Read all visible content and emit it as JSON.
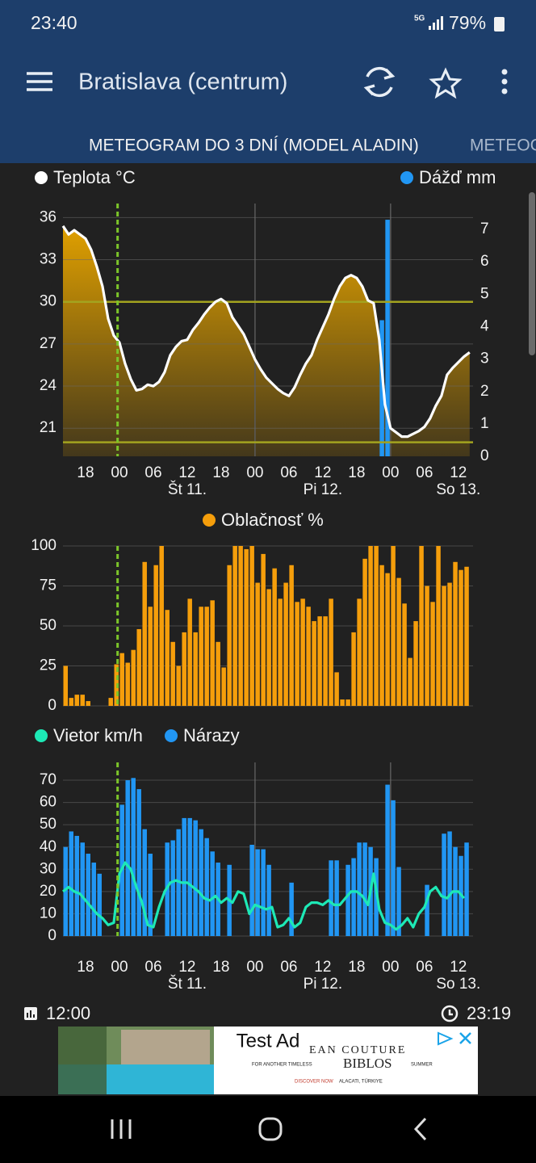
{
  "status_bar": {
    "time": "23:40",
    "network": "5G",
    "battery": "79%"
  },
  "app_bar": {
    "title": "Bratislava (centrum)"
  },
  "tabs": [
    "METEOGRAM DO 3 DNÍ (MODEL ALADIN)",
    "METEOG"
  ],
  "chart_data": [
    {
      "type": "line",
      "series": [
        {
          "name": "Teplota °C",
          "color": "#ffffff",
          "area_color": "#e0a000",
          "x": [
            14,
            15,
            16,
            17,
            18,
            19,
            20,
            21,
            22,
            23,
            24,
            25,
            26,
            27,
            28,
            29,
            30,
            31,
            32,
            33,
            34,
            35,
            36,
            37,
            38,
            39,
            40,
            41,
            42,
            43,
            44,
            45,
            46,
            47,
            48,
            49,
            50,
            51,
            52,
            53,
            54,
            55,
            56,
            57,
            58,
            59,
            60,
            61,
            62,
            63,
            64,
            65,
            66,
            67,
            68,
            69,
            70,
            71,
            72,
            73,
            74,
            75,
            76,
            77,
            78,
            79,
            80,
            81,
            82,
            83,
            84,
            85,
            86
          ],
          "values": [
            35.4,
            34.8,
            35.1,
            34.8,
            34.5,
            33.7,
            32.5,
            31.1,
            28.8,
            27.6,
            27.1,
            25.6,
            24.5,
            23.7,
            23.8,
            24.1,
            24.0,
            24.3,
            25.0,
            26.2,
            26.8,
            27.2,
            27.3,
            28.0,
            28.5,
            29.1,
            29.6,
            30.0,
            30.2,
            29.9,
            28.9,
            28.3,
            27.7,
            26.8,
            25.9,
            25.2,
            24.6,
            24.2,
            23.8,
            23.5,
            23.3,
            23.9,
            24.8,
            25.6,
            26.2,
            27.3,
            28.2,
            29.1,
            30.2,
            31.1,
            31.7,
            31.9,
            31.7,
            31.1,
            30.1,
            29.9,
            27.3,
            22.7,
            21.0,
            20.7,
            20.4,
            20.4,
            20.6,
            20.8,
            21.1,
            21.7,
            22.6,
            23.3,
            24.8,
            25.3,
            25.7,
            26.1,
            26.4
          ]
        },
        {
          "name": "Dážď mm",
          "color": "#2196f3",
          "type": "bar",
          "axis": "y2",
          "x": [
            70,
            71
          ],
          "values": [
            4.2,
            7.3
          ]
        }
      ],
      "xlim": [
        14,
        86.6
      ],
      "xticks": [
        {
          "value": 18,
          "label": "18"
        },
        {
          "value": 24,
          "label": "00"
        },
        {
          "value": 30,
          "label": "06"
        },
        {
          "value": 36,
          "label": "12"
        },
        {
          "value": 42,
          "label": "18"
        },
        {
          "value": 48,
          "label": "00"
        },
        {
          "value": 54,
          "label": "06"
        },
        {
          "value": 60,
          "label": "12"
        },
        {
          "value": 66,
          "label": "18"
        },
        {
          "value": 72,
          "label": "00"
        },
        {
          "value": 78,
          "label": "06"
        },
        {
          "value": 84,
          "label": "12"
        }
      ],
      "day_labels": [
        {
          "value": 36,
          "label": "Št 11."
        },
        {
          "value": 60,
          "label": "Pi 12."
        },
        {
          "value": 84,
          "label": "So 13."
        }
      ],
      "vgrid": [
        48,
        72
      ],
      "ylim": [
        19,
        37
      ],
      "yticks": [
        21,
        24,
        27,
        30,
        33,
        36
      ],
      "y2lim": [
        0,
        7.8
      ],
      "y2ticks": [
        0,
        1,
        2,
        3,
        4,
        5,
        6,
        7
      ],
      "grid": true,
      "reference_lines": {
        "values": [
          30,
          20
        ],
        "color": "#a3a31f"
      },
      "now_line": {
        "value": 23.67,
        "color": "#7cc52a"
      }
    },
    {
      "type": "bar",
      "series": [
        {
          "name": "Oblačnosť %",
          "color": "#f59e0b",
          "x": [
            14,
            15,
            16,
            17,
            18,
            19,
            20,
            21,
            22,
            23,
            24,
            25,
            26,
            27,
            28,
            29,
            30,
            31,
            32,
            33,
            34,
            35,
            36,
            37,
            38,
            39,
            40,
            41,
            42,
            43,
            44,
            45,
            46,
            47,
            48,
            49,
            50,
            51,
            52,
            53,
            54,
            55,
            56,
            57,
            58,
            59,
            60,
            61,
            62,
            63,
            64,
            65,
            66,
            67,
            68,
            69,
            70,
            71,
            72,
            73,
            74,
            75,
            76,
            77,
            78,
            79,
            80,
            81,
            82,
            83,
            84,
            85
          ],
          "values": [
            25,
            5,
            7,
            7,
            3,
            0,
            0,
            0,
            5,
            26,
            33,
            27,
            35,
            48,
            90,
            62,
            88,
            100,
            60,
            40,
            25,
            46,
            67,
            46,
            62,
            62,
            66,
            40,
            24,
            88,
            100,
            100,
            98,
            100,
            77,
            95,
            73,
            86,
            67,
            77,
            88,
            65,
            67,
            62,
            53,
            56,
            56,
            67,
            21,
            4,
            4,
            46,
            67,
            92,
            100,
            100,
            88,
            83,
            100,
            80,
            64,
            30,
            53,
            100,
            75,
            65,
            100,
            75,
            77,
            90,
            85,
            87
          ]
        }
      ],
      "xlim": [
        14,
        86.6
      ],
      "ylim": [
        0,
        100
      ],
      "yticks": [
        0,
        25,
        50,
        75,
        100
      ],
      "grid": true,
      "now_line": {
        "value": 23.67,
        "color": "#7cc52a"
      }
    },
    {
      "type": "bar",
      "series": [
        {
          "name": "Vietor km/h",
          "color": "#1de9b6",
          "type": "line",
          "x": [
            14,
            15,
            16,
            17,
            18,
            19,
            20,
            21,
            22,
            23,
            24,
            25,
            26,
            27,
            28,
            29,
            30,
            31,
            32,
            33,
            34,
            35,
            36,
            37,
            38,
            39,
            40,
            41,
            42,
            43,
            44,
            45,
            46,
            47,
            48,
            49,
            50,
            51,
            52,
            53,
            54,
            55,
            56,
            57,
            58,
            59,
            60,
            61,
            62,
            63,
            64,
            65,
            66,
            67,
            68,
            69,
            70,
            71,
            72,
            73,
            74,
            75,
            76,
            77,
            78,
            79,
            80,
            81,
            82,
            83,
            84,
            85
          ],
          "values": [
            20,
            22,
            20,
            19,
            16,
            13,
            10,
            8,
            5,
            6,
            28,
            33,
            30,
            22,
            15,
            5,
            4,
            13,
            20,
            24,
            25,
            24,
            24,
            22,
            20,
            17,
            16,
            18,
            15,
            17,
            15,
            20,
            19,
            10,
            14,
            13,
            12,
            13,
            4,
            5,
            8,
            4,
            6,
            13,
            15,
            15,
            14,
            16,
            14,
            14,
            17,
            20,
            20,
            18,
            14,
            28,
            12,
            6,
            5,
            3,
            5,
            8,
            4,
            10,
            13,
            20,
            22,
            18,
            17,
            20,
            20,
            17
          ]
        },
        {
          "name": "Nárazy",
          "color": "#2196f3",
          "type": "bar",
          "x": [
            14,
            15,
            16,
            17,
            18,
            19,
            20,
            21,
            22,
            23,
            24,
            25,
            26,
            27,
            28,
            29,
            30,
            31,
            32,
            33,
            34,
            35,
            36,
            37,
            38,
            39,
            40,
            41,
            42,
            43,
            44,
            45,
            46,
            47,
            48,
            49,
            50,
            51,
            52,
            53,
            54,
            55,
            56,
            57,
            58,
            59,
            60,
            61,
            62,
            63,
            64,
            65,
            66,
            67,
            68,
            69,
            70,
            71,
            72,
            73,
            74,
            75,
            76,
            77,
            78,
            79,
            80,
            81,
            82,
            83,
            84,
            85
          ],
          "values": [
            40,
            47,
            45,
            42,
            37,
            33,
            28,
            0,
            0,
            0,
            59,
            70,
            71,
            66,
            48,
            37,
            0,
            0,
            42,
            43,
            48,
            53,
            53,
            52,
            48,
            44,
            38,
            33,
            0,
            32,
            0,
            0,
            0,
            41,
            39,
            39,
            32,
            0,
            0,
            0,
            24,
            0,
            0,
            0,
            0,
            0,
            0,
            34,
            34,
            0,
            32,
            35,
            42,
            42,
            40,
            35,
            0,
            68,
            61,
            31,
            0,
            0,
            0,
            0,
            23,
            0,
            0,
            46,
            47,
            40,
            36,
            42
          ]
        }
      ],
      "xlim": [
        14,
        86.6
      ],
      "xticks": [
        {
          "value": 18,
          "label": "18"
        },
        {
          "value": 24,
          "label": "00"
        },
        {
          "value": 30,
          "label": "06"
        },
        {
          "value": 36,
          "label": "12"
        },
        {
          "value": 42,
          "label": "18"
        },
        {
          "value": 48,
          "label": "00"
        },
        {
          "value": 54,
          "label": "06"
        },
        {
          "value": 60,
          "label": "12"
        },
        {
          "value": 66,
          "label": "18"
        },
        {
          "value": 72,
          "label": "00"
        },
        {
          "value": 78,
          "label": "06"
        },
        {
          "value": 84,
          "label": "12"
        }
      ],
      "day_labels": [
        {
          "value": 36,
          "label": "Št 11."
        },
        {
          "value": 60,
          "label": "Pi 12."
        },
        {
          "value": 84,
          "label": "So 13."
        }
      ],
      "vgrid": [
        48,
        72
      ],
      "ylim": [
        0,
        78
      ],
      "yticks": [
        0,
        10,
        20,
        30,
        40,
        50,
        60,
        70
      ],
      "grid": true,
      "now_line": {
        "value": 23.67,
        "color": "#7cc52a"
      }
    }
  ],
  "footer": {
    "left": "12:00",
    "right": "23:19"
  },
  "ad": {
    "label": "Test Ad",
    "brand_top": "EAN COUTURE",
    "brand": "BIBLOS",
    "tagline_left": "FOR ANOTHER TIMELESS",
    "tagline_right": "SUMMER",
    "cta": "DISCOVER NOW",
    "location": "ALACATI, TÜRKIYE"
  }
}
